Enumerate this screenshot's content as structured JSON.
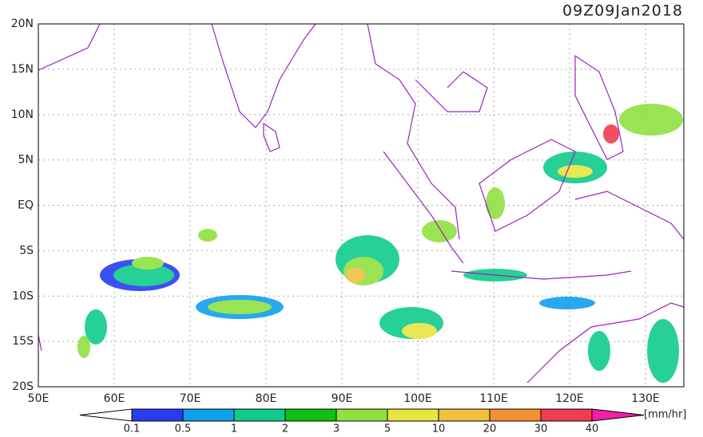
{
  "title": "09Z09Jan2018",
  "map": {
    "lat_labels": [
      "20N",
      "15N",
      "10N",
      "5N",
      "EQ",
      "5S",
      "10S",
      "15S",
      "20S"
    ],
    "lon_labels": [
      "50E",
      "60E",
      "70E",
      "80E",
      "90E",
      "100E",
      "110E",
      "120E",
      "130E"
    ]
  },
  "legend": {
    "labels": [
      "0.1",
      "0.5",
      "1",
      "2",
      "3",
      "5",
      "10",
      "20",
      "30",
      "40"
    ],
    "colors": [
      "#ffffff",
      "#2a3cf0",
      "#10a0ee",
      "#10cc8c",
      "#10c010",
      "#90e040",
      "#e6e640",
      "#f0c040",
      "#f09030",
      "#f03c50",
      "#f020a8"
    ],
    "unit": "[mm/hr]"
  }
}
